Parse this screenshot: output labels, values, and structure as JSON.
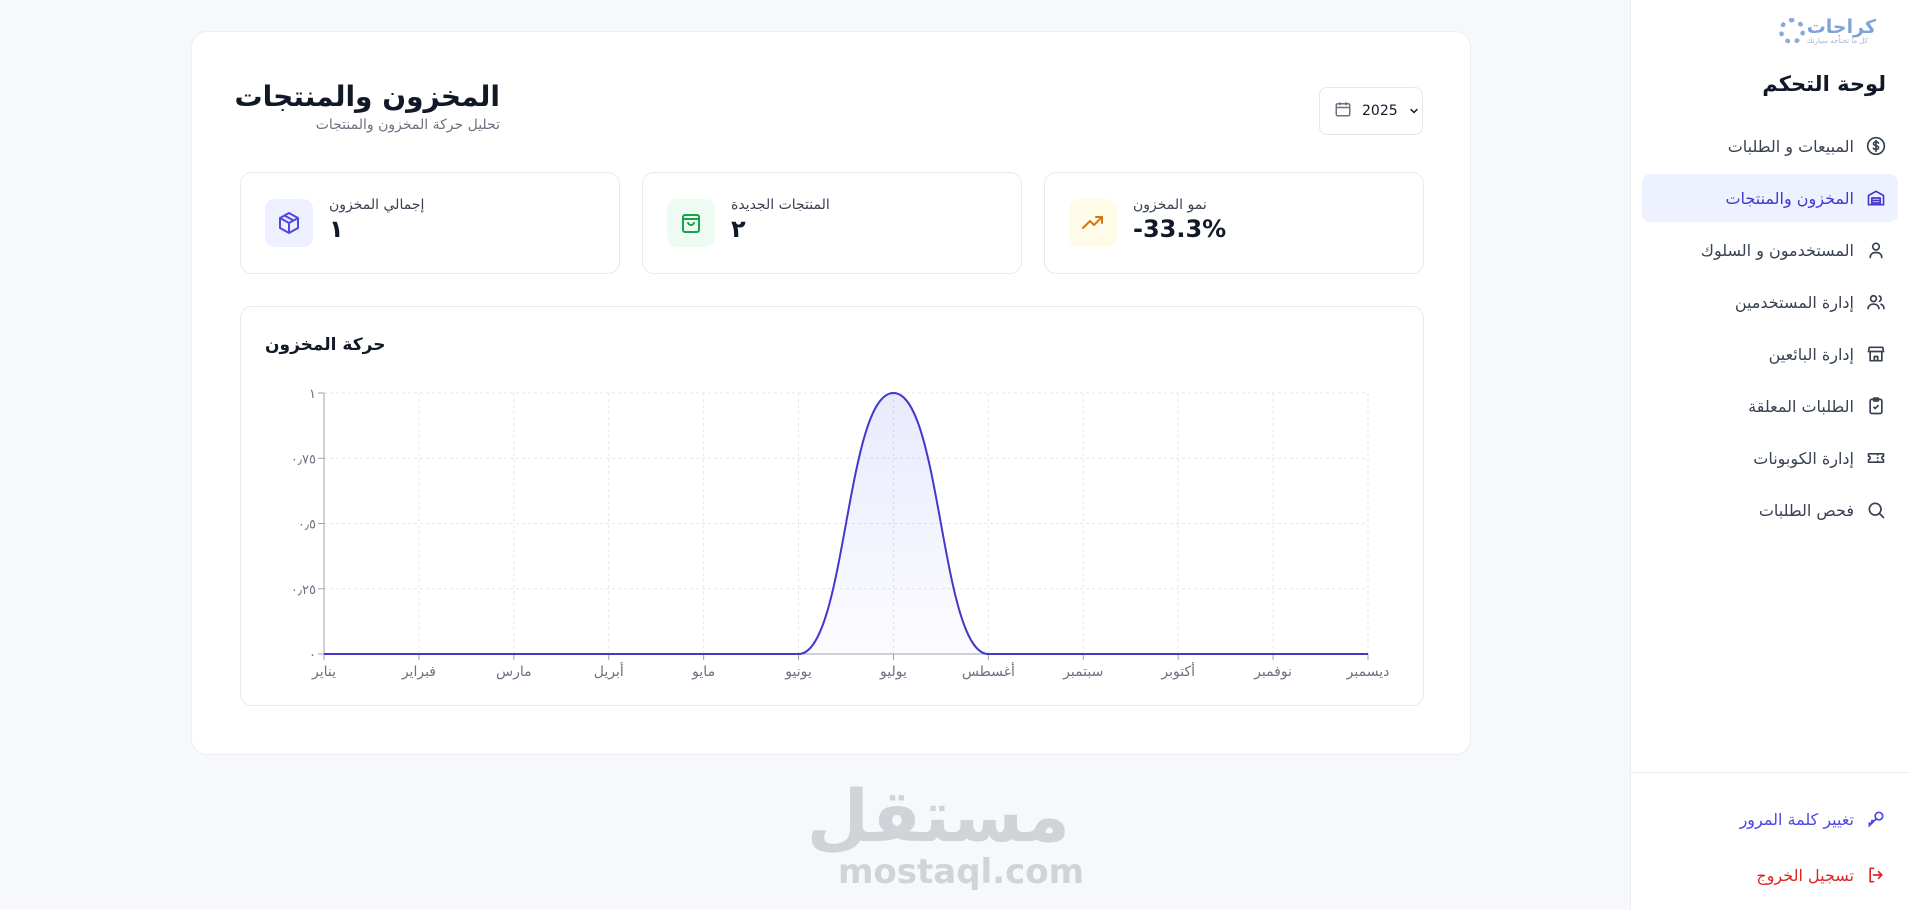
{
  "sidebar": {
    "logo_text": "كراجات",
    "logo_sub": "كل ما تحتاجه سيارتك",
    "title": "لوحة التحكم",
    "items": [
      {
        "label": "المبيعات و الطلبات",
        "icon": "dollar-icon"
      },
      {
        "label": "المخزون والمنتجات",
        "icon": "warehouse-icon",
        "active": true
      },
      {
        "label": "المستخدمون و السلوك",
        "icon": "user-icon"
      },
      {
        "label": "إدارة المستخدمين",
        "icon": "users-icon"
      },
      {
        "label": "إدارة البائعين",
        "icon": "store-icon"
      },
      {
        "label": "الطلبات المعلقة",
        "icon": "clipboard-check-icon"
      },
      {
        "label": "إدارة الكوبونات",
        "icon": "ticket-icon"
      },
      {
        "label": "فحص الطلبات",
        "icon": "search-icon"
      }
    ],
    "change_password": "تغيير كلمة المرور",
    "logout": "تسجيل الخروج"
  },
  "header": {
    "title": "المخزون والمنتجات",
    "subtitle": "تحليل حركة المخزون والمنتجات",
    "year": "2025"
  },
  "stats": [
    {
      "label": "نمو المخزون",
      "value": "-33.3%",
      "icon": "trending-up-icon",
      "color": "#d97706",
      "bg": "#fefbe8"
    },
    {
      "label": "المنتجات الجديدة",
      "value": "٢",
      "icon": "shopping-bag-icon",
      "color": "#16a34a",
      "bg": "#eefbf2"
    },
    {
      "label": "إجمالي المخزون",
      "value": "١",
      "icon": "package-icon",
      "color": "#4f46e5",
      "bg": "#eef0ff"
    }
  ],
  "chart_data": {
    "type": "area",
    "title": "حركة المخزون",
    "categories": [
      "يناير",
      "فبراير",
      "مارس",
      "أبريل",
      "مايو",
      "يونيو",
      "يوليو",
      "أغسطس",
      "سبتمبر",
      "أكتوبر",
      "نوفمبر",
      "ديسمبر"
    ],
    "values": [
      0,
      0,
      0,
      0,
      0,
      0,
      1,
      0,
      0,
      0,
      0,
      0
    ],
    "ylim": [
      0,
      1
    ],
    "yticks": [
      0,
      0.25,
      0.5,
      0.75,
      1
    ],
    "ytick_labels": [
      "٠",
      "٠٫٢٥",
      "٠٫٥",
      "٠٫٧٥",
      "١"
    ],
    "grid": true,
    "line_color": "#4338ca"
  },
  "watermark": {
    "ar": "مستقل",
    "en": "mostaql.com"
  }
}
